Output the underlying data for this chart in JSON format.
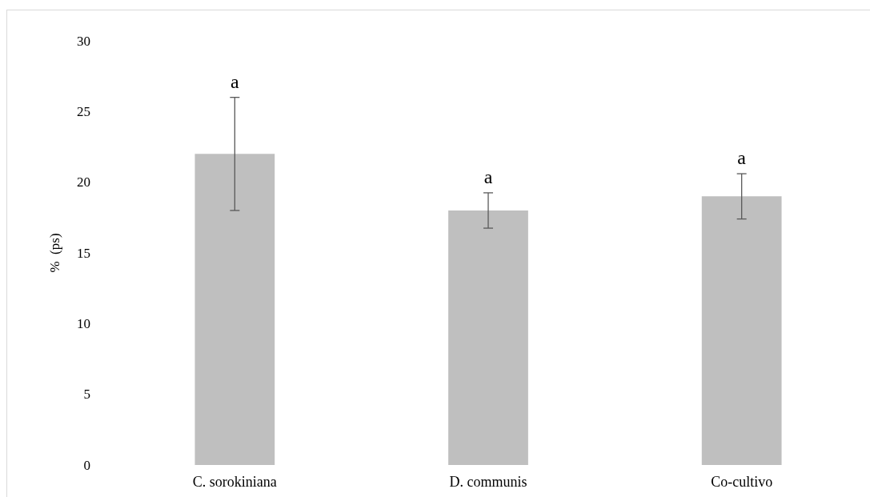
{
  "chart_data": {
    "type": "bar",
    "ylabel": "%  (ps)",
    "categories": [
      "C. sorokiniana",
      "D. communis",
      "Co-cultivo"
    ],
    "values": [
      22,
      18,
      19
    ],
    "color": "#bfbfbf",
    "errors": [
      4,
      1.25,
      1.6
    ],
    "ylim": [
      0,
      30
    ],
    "yticks": [
      0,
      5,
      10,
      15,
      20,
      25,
      30
    ],
    "grid": false,
    "annotations": [
      "a",
      "a",
      "a"
    ]
  }
}
